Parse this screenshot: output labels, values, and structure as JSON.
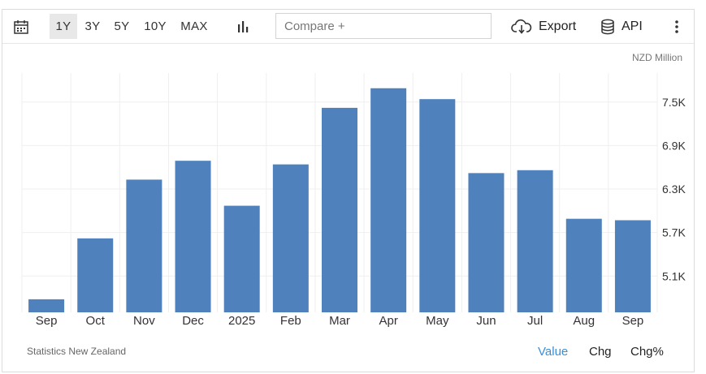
{
  "toolbar": {
    "ranges": [
      "1Y",
      "3Y",
      "5Y",
      "10Y",
      "MAX"
    ],
    "active_range": "1Y",
    "compare_placeholder": "Compare +",
    "export_label": "Export",
    "api_label": "API"
  },
  "unit_label": "NZD Million",
  "source": "Statistics New Zealand",
  "view_toggles": [
    "Value",
    "Chg",
    "Chg%"
  ],
  "active_view": "Value",
  "colors": {
    "bar": "#4f81bd",
    "active_toggle": "#3a8fd8"
  },
  "chart_data": {
    "type": "bar",
    "categories": [
      "Sep",
      "Oct",
      "Nov",
      "Dec",
      "2025",
      "Feb",
      "Mar",
      "Apr",
      "May",
      "Jun",
      "Jul",
      "Aug",
      "Sep"
    ],
    "values": [
      4780,
      5620,
      6430,
      6690,
      6070,
      6640,
      7420,
      7690,
      7540,
      6520,
      6560,
      5890,
      5870
    ],
    "yticks": [
      5100,
      5700,
      6300,
      6900,
      7500
    ],
    "ytick_labels": [
      "5.1K",
      "5.7K",
      "6.3K",
      "6.9K",
      "7.5K"
    ],
    "ylim": [
      4600,
      7900
    ],
    "unit": "NZD Million",
    "grid": true
  }
}
